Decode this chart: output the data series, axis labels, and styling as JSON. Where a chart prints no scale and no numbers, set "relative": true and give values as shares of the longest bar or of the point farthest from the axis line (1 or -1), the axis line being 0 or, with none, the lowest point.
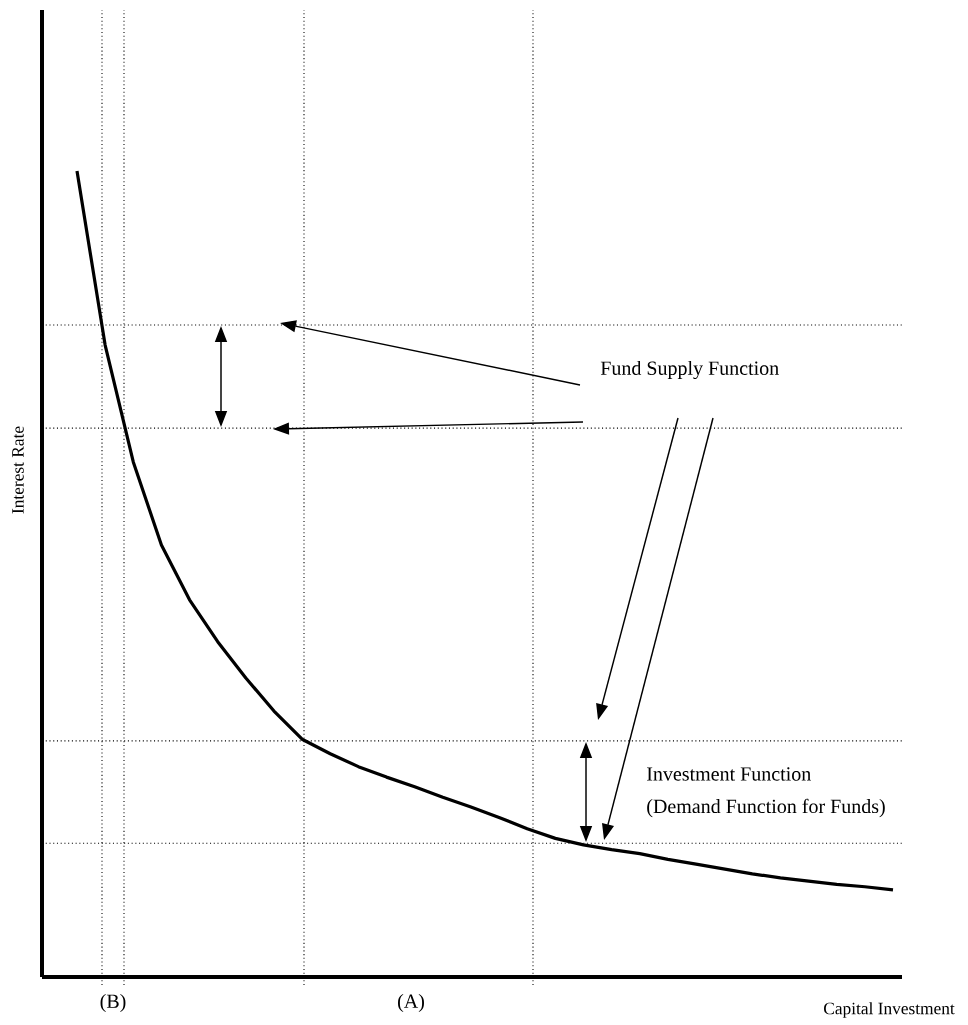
{
  "chart_data": {
    "type": "line",
    "relative": true,
    "xlabel": "Capital Investment",
    "ylabel": "Interest Rate",
    "categories": [
      null,
      null,
      null,
      null,
      null,
      null,
      null,
      null,
      null,
      null,
      null,
      null,
      null,
      null,
      null,
      null,
      null,
      null,
      null,
      null,
      null,
      null,
      null,
      null,
      null,
      null,
      null,
      null,
      null,
      null
    ],
    "series": [
      {
        "color": "#000000",
        "values": [
          1.0,
          0.784,
          0.639,
          0.536,
          0.468,
          0.416,
          0.371,
          0.33,
          0.295,
          0.277,
          0.261,
          0.248,
          0.236,
          0.223,
          0.211,
          0.198,
          0.184,
          0.172,
          0.164,
          0.158,
          0.153,
          0.146,
          0.14,
          0.134,
          0.128,
          0.123,
          0.119,
          0.115,
          0.112,
          0.108
        ]
      }
    ],
    "ref_lines": [
      {
        "axis": "y",
        "value": 0.809,
        "color": "#000000",
        "line_style": "dotted"
      },
      {
        "axis": "y",
        "value": 0.681,
        "color": "#000000",
        "line_style": "dotted"
      },
      {
        "axis": "y",
        "value": 0.293,
        "color": "#000000",
        "line_style": "dotted"
      },
      {
        "axis": "y",
        "value": 0.166,
        "color": "#000000",
        "line_style": "dotted"
      }
    ],
    "annotations": [
      "Fund Supply Function",
      "Investment Function",
      "(Demand Function for Funds)",
      "(B)",
      "(A)"
    ]
  }
}
